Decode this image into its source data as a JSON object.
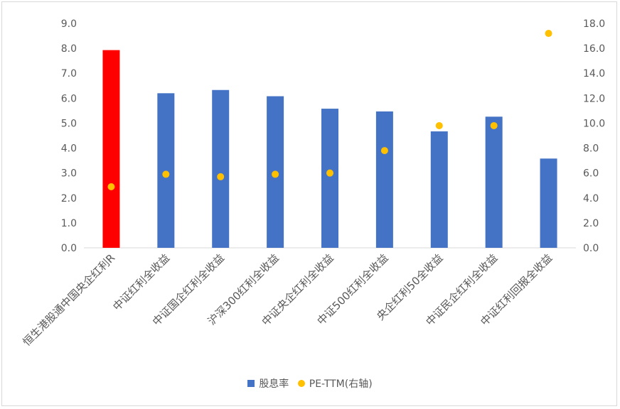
{
  "chart_data": {
    "type": "bar",
    "categories": [
      "恒生港股通中国央企红利R",
      "中证红利全收益",
      "中证国企红利全收益",
      "沪深300红利全收益",
      "中证央企红利全收益",
      "中证500红利全收益",
      "央企红利50全收益",
      "中证民企红利全收益",
      "中证红利回报全收益"
    ],
    "series": [
      {
        "name": "股息率",
        "kind": "bar",
        "axis": "left",
        "values": [
          7.93,
          6.2,
          6.33,
          6.08,
          5.58,
          5.47,
          4.67,
          5.26,
          3.58
        ]
      },
      {
        "name": "PE-TTM(右轴)",
        "kind": "scatter",
        "axis": "right",
        "values": [
          4.9,
          5.9,
          5.7,
          5.9,
          6.0,
          7.8,
          9.8,
          9.8,
          17.2
        ]
      }
    ],
    "bar_colors": [
      "#ff0000",
      "#4472c4",
      "#4472c4",
      "#4472c4",
      "#4472c4",
      "#4472c4",
      "#4472c4",
      "#4472c4",
      "#4472c4"
    ],
    "marker_color": "#ffc000",
    "ylim": [
      0,
      9
    ],
    "y2lim": [
      0,
      18
    ],
    "yticks": [
      "0.0",
      "1.0",
      "2.0",
      "3.0",
      "4.0",
      "5.0",
      "6.0",
      "7.0",
      "8.0",
      "9.0"
    ],
    "y2ticks": [
      "0.0",
      "2.0",
      "4.0",
      "6.0",
      "8.0",
      "10.0",
      "12.0",
      "14.0",
      "16.0",
      "18.0"
    ],
    "legend": {
      "position": "bottom",
      "bar_label": "股息率",
      "marker_label": "PE-TTM(右轴)"
    },
    "gridlines": false
  }
}
